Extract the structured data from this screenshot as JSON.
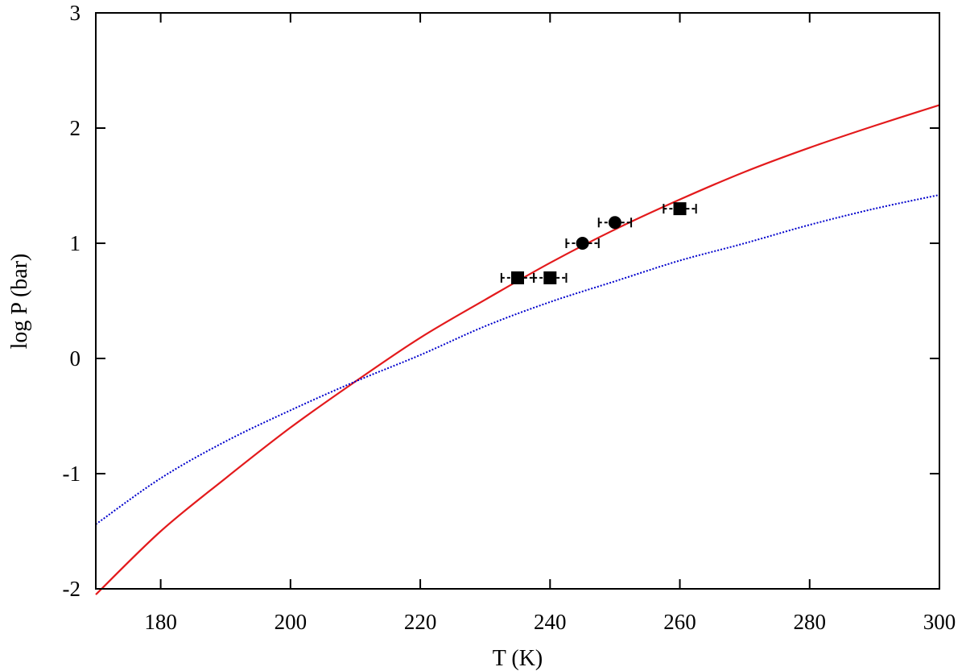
{
  "chart_data": {
    "type": "line",
    "title": "",
    "xlabel": "T (K)",
    "ylabel": "log P (bar)",
    "xlim": [
      170,
      300
    ],
    "ylim": [
      -2,
      3
    ],
    "xticks": [
      180,
      200,
      220,
      240,
      260,
      280,
      300
    ],
    "yticks": [
      -2,
      -1,
      0,
      1,
      2,
      3
    ],
    "grid": false,
    "legend": "none",
    "series": [
      {
        "style": "solid",
        "color": "#e31a1c",
        "x": [
          170,
          180,
          190,
          200,
          210,
          220,
          230,
          240,
          250,
          260,
          270,
          280,
          290,
          300
        ],
        "y": [
          -2.05,
          -1.5,
          -1.04,
          -0.6,
          -0.2,
          0.18,
          0.51,
          0.83,
          1.12,
          1.38,
          1.62,
          1.83,
          2.02,
          2.2
        ]
      },
      {
        "style": "dotted",
        "color": "#0000cc",
        "x": [
          170,
          180,
          190,
          200,
          210,
          220,
          230,
          240,
          250,
          260,
          270,
          280,
          290,
          300
        ],
        "y": [
          -1.44,
          -1.04,
          -0.72,
          -0.45,
          -0.2,
          0.03,
          0.28,
          0.49,
          0.67,
          0.85,
          1.0,
          1.16,
          1.3,
          1.42
        ]
      }
    ],
    "points": [
      {
        "marker": "square",
        "x": 235,
        "y": 0.7,
        "xerr": 2.5
      },
      {
        "marker": "square",
        "x": 240,
        "y": 0.7,
        "xerr": 2.5
      },
      {
        "marker": "circle",
        "x": 245,
        "y": 1.0,
        "xerr": 2.5
      },
      {
        "marker": "circle",
        "x": 250,
        "y": 1.18,
        "xerr": 2.5
      },
      {
        "marker": "square",
        "x": 260,
        "y": 1.3,
        "xerr": 2.5
      }
    ]
  }
}
